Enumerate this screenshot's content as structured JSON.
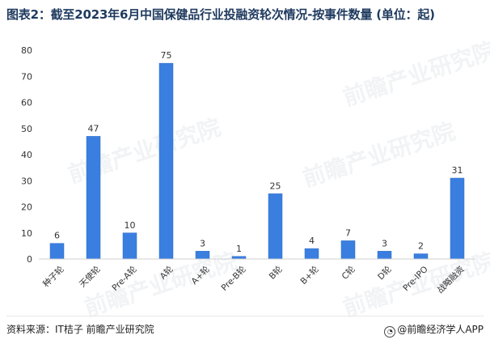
{
  "title": "图表2：截至2023年6月中国保健品行业投融资轮次情况-按事件数量 (单位：起)",
  "source": "资料来源：IT桔子 前瞻产业研究院",
  "attribution": "@前瞻经济学人APP",
  "watermark": "前瞻产业研究院",
  "colors": {
    "bar": "#3a7fe0",
    "bar_edge": "#2c6cc8",
    "axis": "#d0d0d0",
    "grid": "#ffffff",
    "text": "#333333"
  },
  "chart_data": {
    "type": "bar",
    "categories": [
      "种子轮",
      "天使轮",
      "Pre-A轮",
      "A轮",
      "A+轮",
      "Pre-B轮",
      "B轮",
      "B+轮",
      "C轮",
      "D轮",
      "Pre-IPO",
      "战略融资"
    ],
    "values": [
      6,
      47,
      10,
      75,
      3,
      1,
      25,
      4,
      7,
      3,
      2,
      31
    ],
    "yticks": [
      0,
      10,
      20,
      30,
      40,
      50,
      60,
      70,
      80
    ],
    "ylim": [
      0,
      80
    ],
    "grid": false,
    "legend": "none",
    "data_labels": true
  }
}
